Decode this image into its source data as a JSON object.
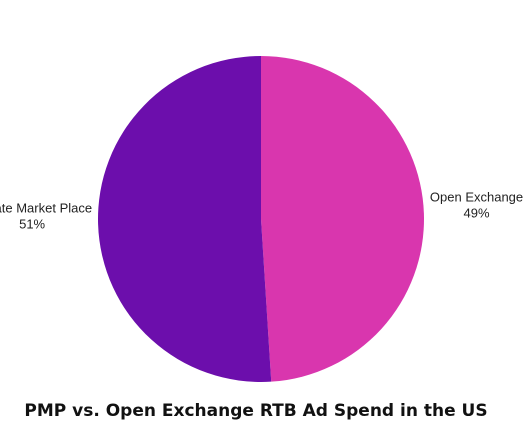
{
  "chart_data": {
    "type": "pie",
    "title": "PMP vs. Open Exchange RTB Ad Spend in the US",
    "slices": [
      {
        "label": "Open Exchange",
        "value": 49,
        "value_label": "49%",
        "color": "#d936ae"
      },
      {
        "label": "Private Market Place",
        "value": 51,
        "value_label": "51%",
        "color": "#6c0eac"
      }
    ],
    "start": "12 o'clock",
    "direction": "clockwise"
  }
}
